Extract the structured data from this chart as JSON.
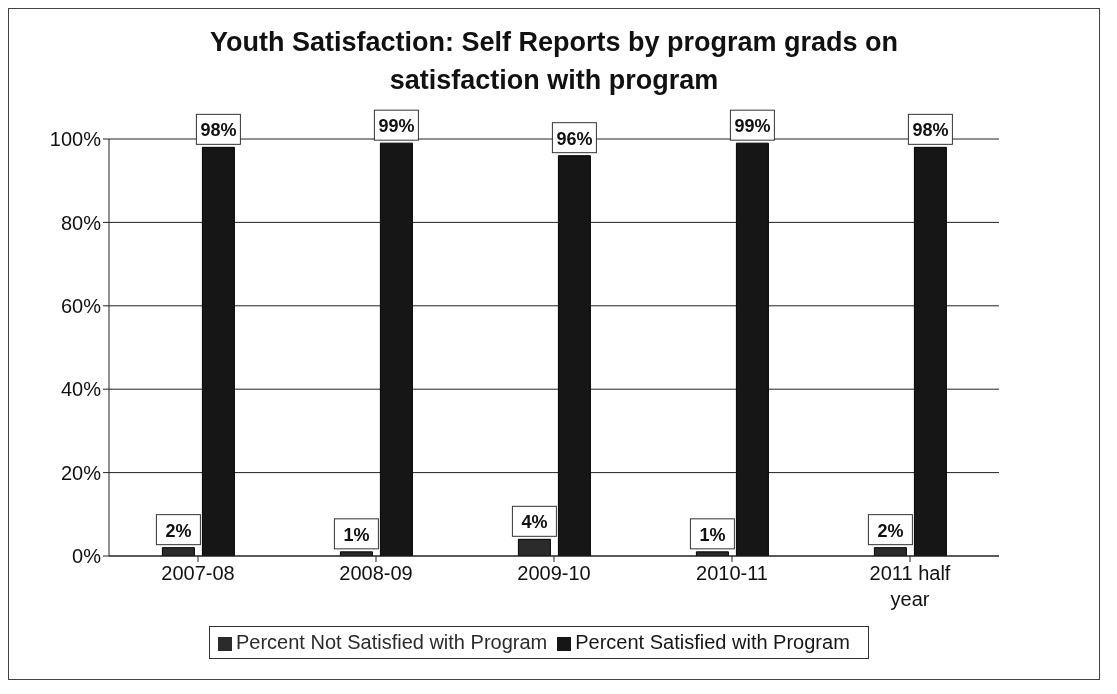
{
  "chart_data": {
    "type": "bar",
    "title": "Youth Satisfaction: Self Reports by program grads on satisfaction with program",
    "categories": [
      "2007-08",
      "2008-09",
      "2009-10",
      "2010-11",
      "2011 half year"
    ],
    "series": [
      {
        "name": "Percent Not Satisfied with Program",
        "color": "#2b2b2b",
        "values": [
          2,
          1,
          4,
          1,
          2
        ],
        "value_labels": [
          "2%",
          "1%",
          "4%",
          "1%",
          "2%"
        ]
      },
      {
        "name": "Percent Satisfied with Program",
        "color": "#161616",
        "values": [
          98,
          99,
          96,
          99,
          98
        ],
        "value_labels": [
          "98%",
          "99%",
          "96%",
          "99%",
          "98%"
        ]
      }
    ],
    "ylim": [
      0,
      100
    ],
    "yticks": [
      {
        "value": 0,
        "label": "0%"
      },
      {
        "value": 20,
        "label": "20%"
      },
      {
        "value": 40,
        "label": "40%"
      },
      {
        "value": 60,
        "label": "60%"
      },
      {
        "value": 80,
        "label": "80%"
      },
      {
        "value": 100,
        "label": "100%"
      }
    ],
    "grid": "y",
    "legend": "bottom"
  }
}
